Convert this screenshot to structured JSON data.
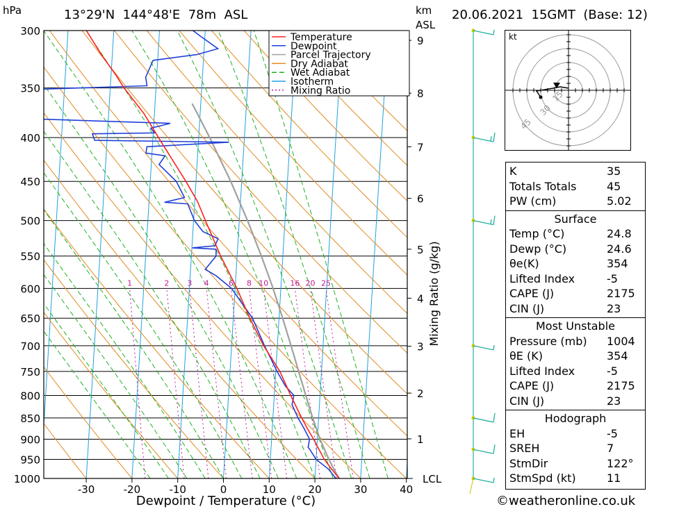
{
  "header": {
    "pressure_unit": "hPa",
    "location": "13°29'N  144°48'E  78m  ASL",
    "km_unit": "km",
    "asl": "ASL",
    "datetime": "20.06.2021  15GMT  (Base: 12)"
  },
  "chart_data": {
    "type": "line",
    "xlabel": "Dewpoint / Temperature (°C)",
    "ylabel_right": "Mixing Ratio (g/kg)",
    "x_ticks": [
      -30,
      -20,
      -10,
      0,
      10,
      20,
      30,
      40
    ],
    "pressure_levels": [
      300,
      350,
      400,
      450,
      500,
      550,
      600,
      650,
      700,
      750,
      800,
      850,
      900,
      950,
      1000
    ],
    "height_ticks_km": [
      1,
      2,
      3,
      4,
      5,
      6,
      7,
      8,
      9
    ],
    "lcl_label": "LCL",
    "mixing_ratio_labels": [
      "1",
      "2",
      "3",
      "4",
      "6",
      "8",
      "10",
      "16",
      "20",
      "25"
    ],
    "legend": [
      "Temperature",
      "Dewpoint",
      "Parcel Trajectory",
      "Dry Adiabat",
      "Wet Adiabat",
      "Isotherm",
      "Mixing Ratio"
    ],
    "colors": {
      "temperature": "#ff2020",
      "dewpoint": "#1f3fd8",
      "parcel": "#a0a0a0",
      "dry_adiabat": "#e08a20",
      "wet_adiabat": "#20b020",
      "isotherm": "#20a0e0",
      "mixing_ratio": "#c0189a",
      "wind": "#22b0a0"
    },
    "temperature": [
      [
        1000,
        25.3
      ],
      [
        975,
        23.5
      ],
      [
        950,
        21.8
      ],
      [
        925,
        20.5
      ],
      [
        900,
        19.2
      ],
      [
        875,
        17.7
      ],
      [
        850,
        16.3
      ],
      [
        800,
        13.6
      ],
      [
        750,
        10.9
      ],
      [
        720,
        8.6
      ],
      [
        700,
        7.0
      ],
      [
        650,
        3.6
      ],
      [
        600,
        0.4
      ],
      [
        550,
        -3.6
      ],
      [
        500,
        -7.4
      ],
      [
        475,
        -9.4
      ],
      [
        450,
        -12.2
      ],
      [
        400,
        -18.8
      ],
      [
        375,
        -22.3
      ],
      [
        350,
        -27.0
      ],
      [
        340,
        -28.6
      ],
      [
        320,
        -32.4
      ],
      [
        300,
        -36.0
      ]
    ],
    "dewpoint": [
      [
        1000,
        24.6
      ],
      [
        975,
        22.8
      ],
      [
        950,
        20.0
      ],
      [
        925,
        18.5
      ],
      [
        920,
        18.1
      ],
      [
        900,
        18.3
      ],
      [
        875,
        17.0
      ],
      [
        850,
        15.5
      ],
      [
        820,
        14.0
      ],
      [
        800,
        14.3
      ],
      [
        780,
        12.3
      ],
      [
        750,
        10.3
      ],
      [
        700,
        7.2
      ],
      [
        650,
        4.2
      ],
      [
        600,
        -0.8
      ],
      [
        580,
        -4.3
      ],
      [
        570,
        -6.8
      ],
      [
        550,
        -4.6
      ],
      [
        540,
        -4.7
      ],
      [
        538,
        -9.9
      ],
      [
        535,
        -5.0
      ],
      [
        525,
        -4.4
      ],
      [
        515,
        -7.8
      ],
      [
        500,
        -9.8
      ],
      [
        478,
        -11.5
      ],
      [
        476,
        -16.6
      ],
      [
        470,
        -12.3
      ],
      [
        450,
        -14.3
      ],
      [
        430,
        -18.3
      ],
      [
        420,
        -17.1
      ],
      [
        417,
        -21.3
      ],
      [
        410,
        -21.2
      ],
      [
        405,
        -3.3
      ],
      [
        403,
        -32.7
      ],
      [
        396,
        -33.3
      ],
      [
        395,
        -19.7
      ],
      [
        390,
        -20.6
      ],
      [
        385,
        -16.4
      ],
      [
        380,
        -49.2
      ],
      [
        352,
        -50.5
      ],
      [
        348,
        -22.0
      ],
      [
        340,
        -22.4
      ],
      [
        325,
        -21.0
      ],
      [
        320,
        -11.5
      ],
      [
        315,
        -7.0
      ],
      [
        305,
        -10.8
      ],
      [
        300,
        -12.7
      ]
    ],
    "parcel": [
      [
        1000,
        25.3
      ],
      [
        975,
        24.0
      ],
      [
        950,
        22.8
      ],
      [
        900,
        20.6
      ],
      [
        850,
        18.7
      ],
      [
        800,
        16.9
      ],
      [
        750,
        15.0
      ],
      [
        700,
        13.0
      ],
      [
        650,
        10.8
      ],
      [
        600,
        8.3
      ],
      [
        550,
        5.3
      ],
      [
        500,
        1.8
      ],
      [
        450,
        -2.4
      ],
      [
        400,
        -7.6
      ],
      [
        375,
        -10.6
      ],
      [
        365,
        -11.9
      ]
    ],
    "hodograph": {
      "unit": "kt",
      "ring_labels": [
        "15",
        "30",
        "45"
      ]
    },
    "wind_barbs": [
      {
        "pressure": 300,
        "dir": 100,
        "kt": 5
      },
      {
        "pressure": 400,
        "dir": 80,
        "kt": 15
      },
      {
        "pressure": 500,
        "dir": 90,
        "kt": 15
      },
      {
        "pressure": 700,
        "dir": 110,
        "kt": 5
      },
      {
        "pressure": 850,
        "dir": 120,
        "kt": 10
      },
      {
        "pressure": 925,
        "dir": 130,
        "kt": 10
      },
      {
        "pressure": 1000,
        "dir": 140,
        "kt": 5
      }
    ]
  },
  "indices": {
    "block1": [
      {
        "k": "K",
        "v": "35"
      },
      {
        "k": "Totals Totals",
        "v": "45"
      },
      {
        "k": "PW (cm)",
        "v": "5.02"
      }
    ],
    "surface_title": "Surface",
    "surface": [
      {
        "k": "Temp (°C)",
        "v": "24.8"
      },
      {
        "k": "Dewp (°C)",
        "v": "24.6"
      },
      {
        "k": "θe(K)",
        "v": "354"
      },
      {
        "k": "Lifted Index",
        "v": "-5"
      },
      {
        "k": "CAPE (J)",
        "v": "2175"
      },
      {
        "k": "CIN (J)",
        "v": "23"
      }
    ],
    "mu_title": "Most Unstable",
    "mu": [
      {
        "k": "Pressure (mb)",
        "v": "1004"
      },
      {
        "k": "θE (K)",
        "v": "354"
      },
      {
        "k": "Lifted Index",
        "v": "-5"
      },
      {
        "k": "CAPE (J)",
        "v": "2175"
      },
      {
        "k": "CIN (J)",
        "v": "23"
      }
    ],
    "hodo_title": "Hodograph",
    "hodo": [
      {
        "k": "EH",
        "v": "-5"
      },
      {
        "k": "SREH",
        "v": "7"
      },
      {
        "k": "StmDir",
        "v": "122°"
      },
      {
        "k": "StmSpd (kt)",
        "v": "11"
      }
    ]
  },
  "credit": "©weatheronline.co.uk"
}
